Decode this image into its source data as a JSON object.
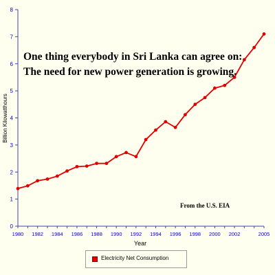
{
  "chart_data": {
    "type": "line",
    "title": "",
    "xlabel": "Year",
    "ylabel": "Billion Kilowatthours",
    "xlim": [
      1980,
      2005
    ],
    "ylim": [
      0,
      8
    ],
    "x_ticks": [
      1980,
      1982,
      1984,
      1986,
      1988,
      1990,
      1992,
      1994,
      1996,
      1998,
      2000,
      2002,
      2005
    ],
    "y_ticks": [
      0,
      1,
      2,
      3,
      4,
      5,
      6,
      7,
      8
    ],
    "grid": false,
    "legend_position": "bottom-center",
    "series": [
      {
        "name": "Electricity Net Consumption",
        "color": "#E00000",
        "x": [
          1980,
          1981,
          1982,
          1983,
          1984,
          1985,
          1986,
          1987,
          1988,
          1989,
          1990,
          1991,
          1992,
          1993,
          1994,
          1995,
          1996,
          1997,
          1998,
          1999,
          2000,
          2001,
          2002,
          2003,
          2004,
          2005
        ],
        "y": [
          1.39,
          1.49,
          1.68,
          1.74,
          1.85,
          2.04,
          2.2,
          2.22,
          2.32,
          2.32,
          2.57,
          2.72,
          2.57,
          3.2,
          3.55,
          3.86,
          3.65,
          4.12,
          4.5,
          4.75,
          5.1,
          5.2,
          5.5,
          6.15,
          6.6,
          7.1
        ]
      }
    ],
    "annotations": [
      "One thing everybody in Sri Lanka can agree on:",
      "The need for new power generation is growing.",
      "From the U.S. EIA"
    ]
  }
}
